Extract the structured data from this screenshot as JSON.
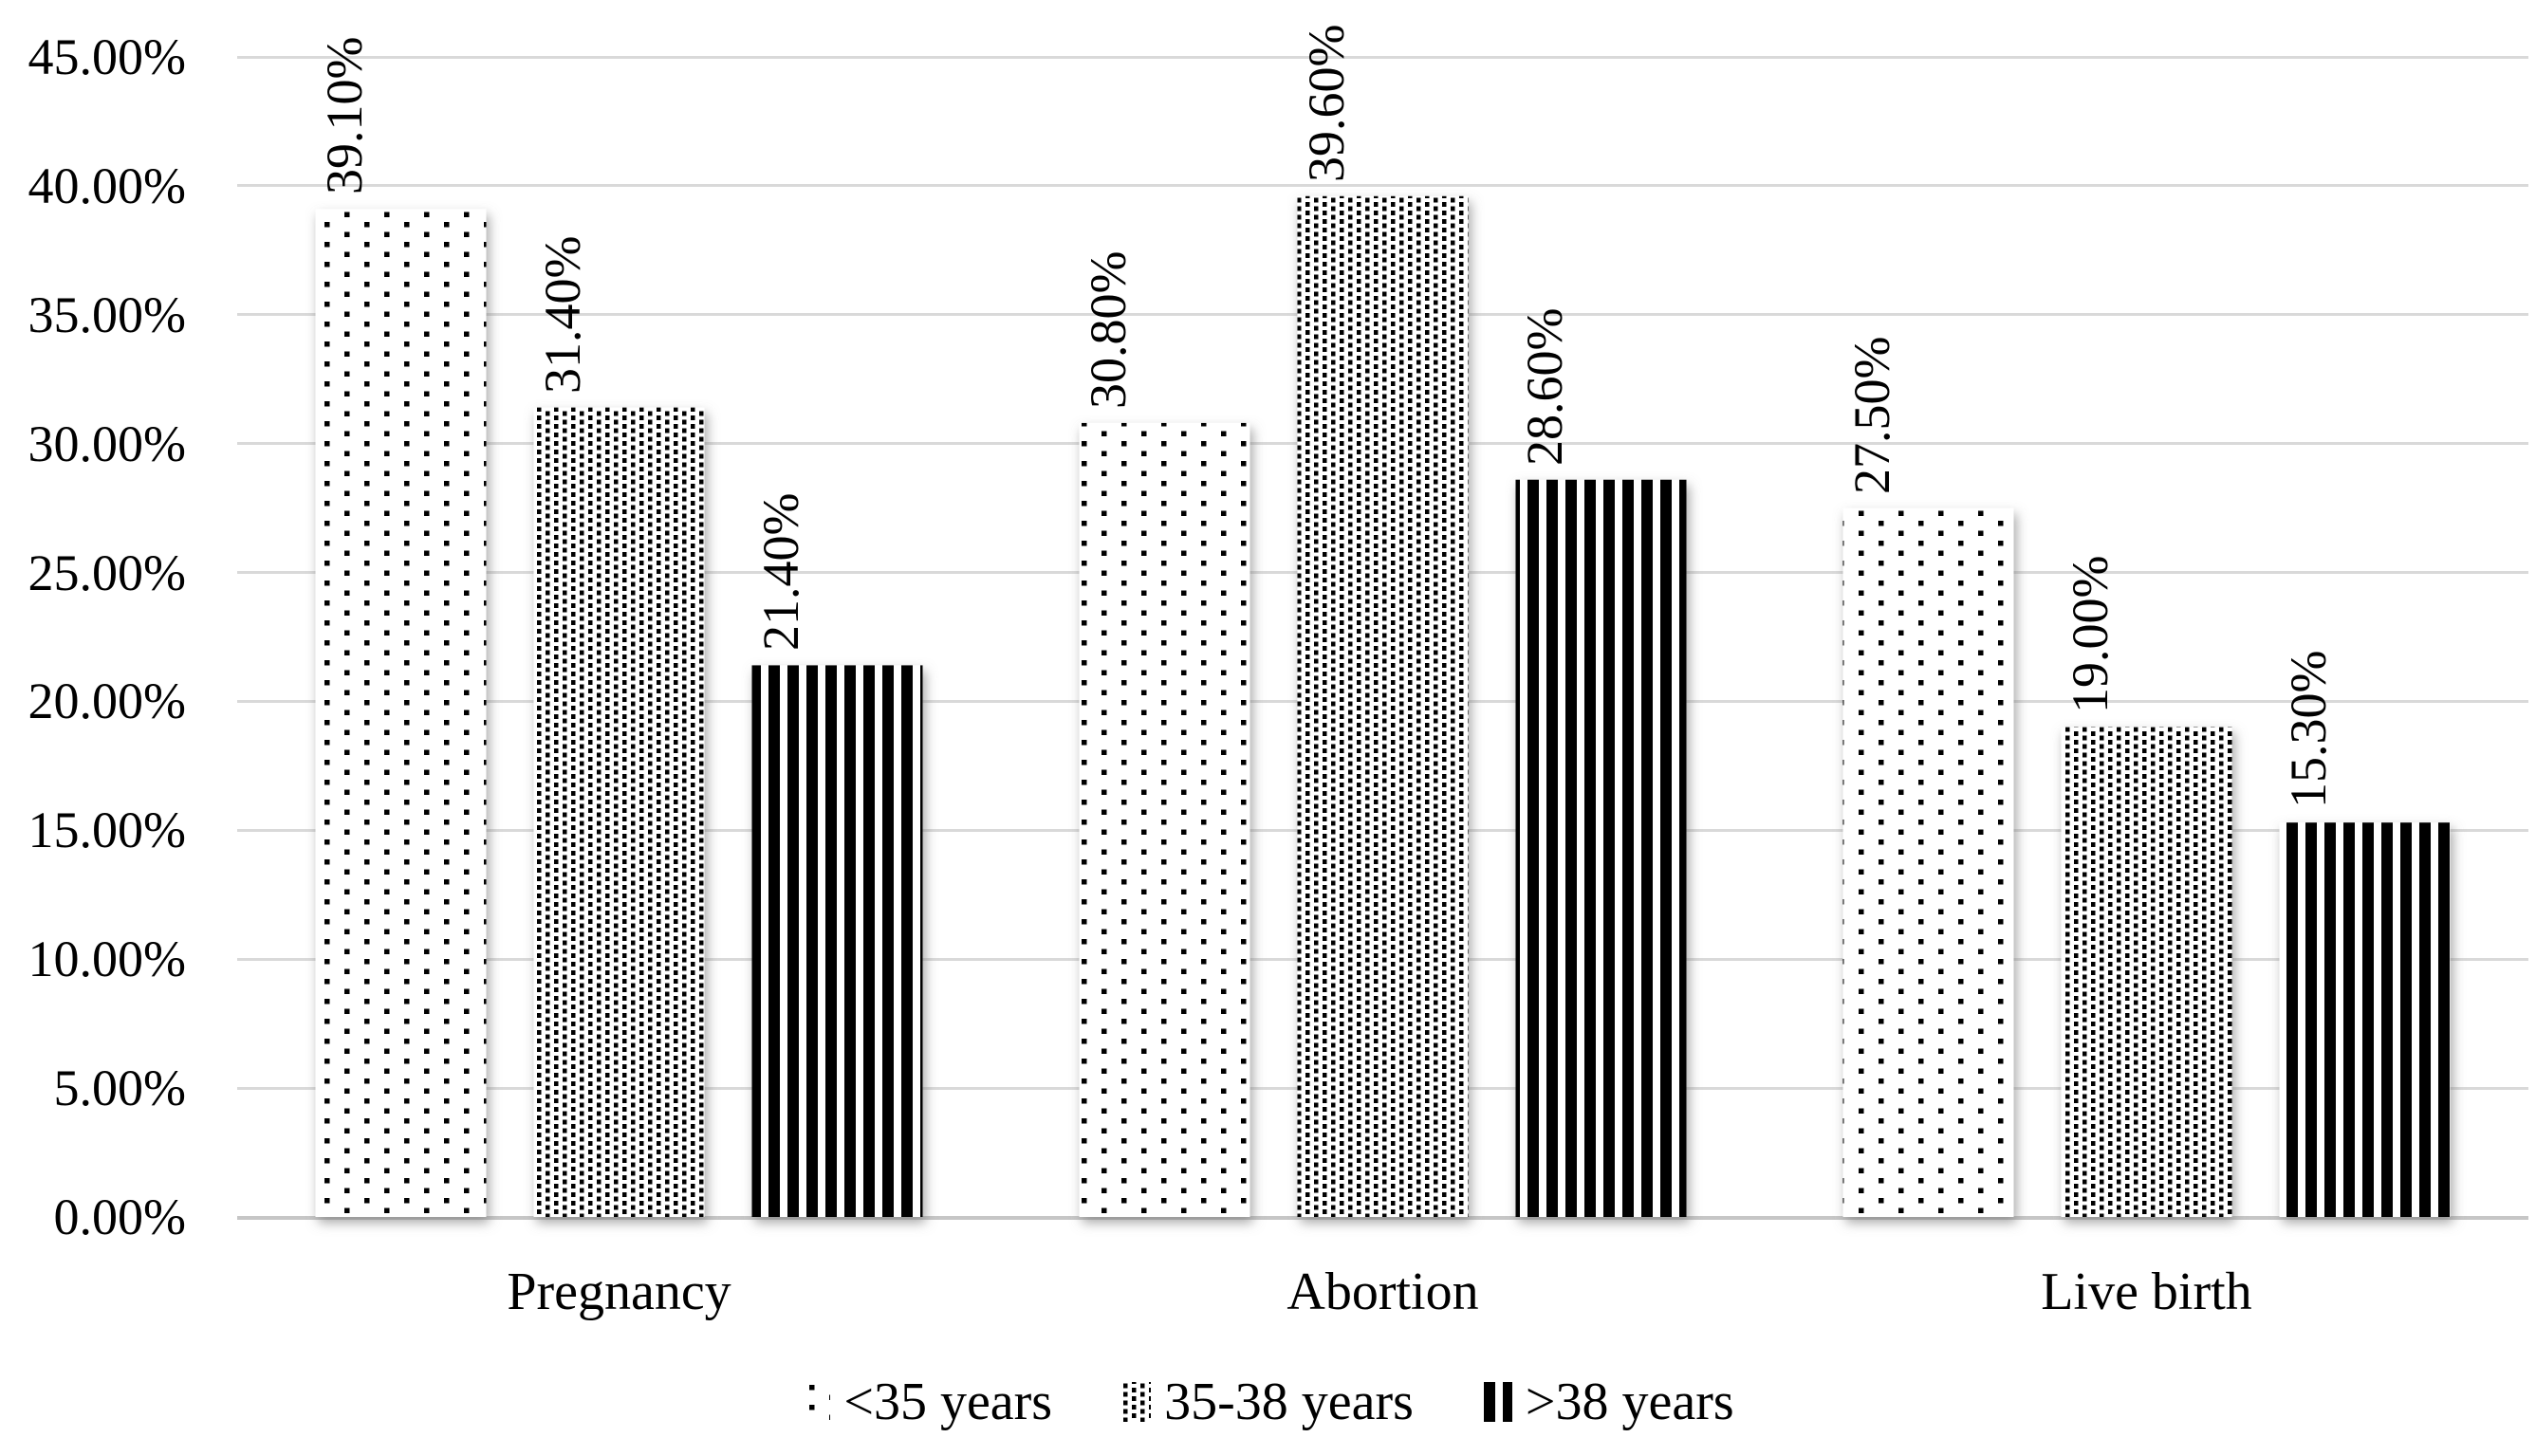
{
  "chart_data": {
    "type": "bar",
    "title": "",
    "categories": [
      "Pregnancy",
      "Abortion",
      "Live birth"
    ],
    "series": [
      {
        "name": "<35 years",
        "pattern": "sparse-dots",
        "values": [
          39.1,
          30.8,
          27.5
        ],
        "display_labels": [
          "39.10%",
          "30.80%",
          "27.50%"
        ]
      },
      {
        "name": "35-38 years",
        "pattern": "dense-dots",
        "values": [
          31.4,
          39.6,
          19.0
        ],
        "display_labels": [
          "31.40%",
          "39.60%",
          "19.00%"
        ]
      },
      {
        "name": ">38 years",
        "pattern": "vertical-stripes",
        "values": [
          21.4,
          28.6,
          15.3
        ],
        "display_labels": [
          "21.40%",
          "28.60%",
          "15.30%"
        ]
      }
    ],
    "xlabel": "",
    "ylabel": "",
    "ylim": [
      0,
      45
    ],
    "ytick_step": 5,
    "ytick_labels": [
      "0.00%",
      "5.00%",
      "10.00%",
      "15.00%",
      "20.00%",
      "25.00%",
      "30.00%",
      "35.00%",
      "40.00%",
      "45.00%"
    ],
    "grid": true,
    "gridline_color": "#d9d9d9",
    "bar_color": "#000000",
    "background_color": "#ffffff",
    "legend_position": "bottom",
    "legend_entries": [
      "<35 years",
      "35-38 years",
      ">38 years"
    ]
  }
}
